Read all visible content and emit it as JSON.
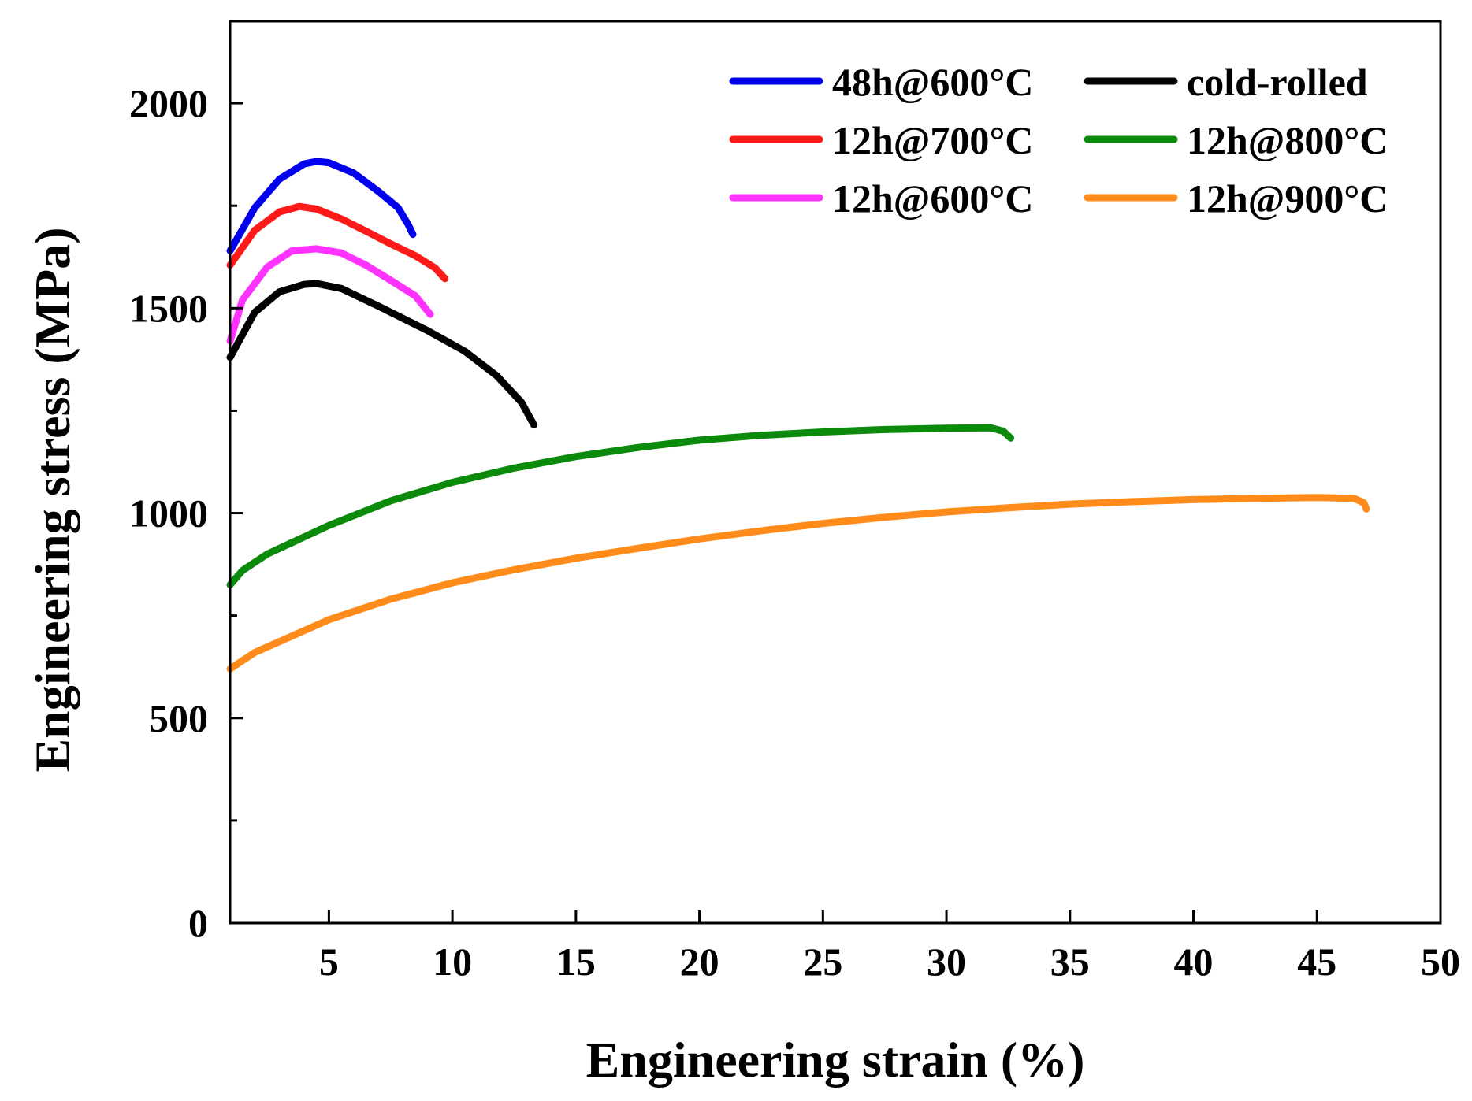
{
  "chart_data": {
    "type": "line",
    "title": "",
    "xlabel": "Engineering strain (%)",
    "ylabel": "Engineering stress (MPa)",
    "xlim": [
      1,
      50
    ],
    "ylim": [
      0,
      2200
    ],
    "x_ticks": [
      5,
      10,
      15,
      20,
      25,
      30,
      35,
      40,
      45,
      50
    ],
    "y_ticks": [
      0,
      500,
      1000,
      1500,
      2000
    ],
    "y_minor_ticks": [
      250,
      750,
      1250,
      1750
    ],
    "grid": false,
    "legend_position": "top-right",
    "series": [
      {
        "name": "48h@600°C",
        "color": "#0000ee",
        "points": [
          [
            1.0,
            1640
          ],
          [
            2.0,
            1745
          ],
          [
            3.0,
            1815
          ],
          [
            4.0,
            1852
          ],
          [
            4.5,
            1858
          ],
          [
            5.0,
            1855
          ],
          [
            6.0,
            1830
          ],
          [
            7.0,
            1785
          ],
          [
            7.8,
            1745
          ],
          [
            8.2,
            1705
          ],
          [
            8.4,
            1680
          ]
        ]
      },
      {
        "name": "12h@700°C",
        "color": "#ff1a1a",
        "points": [
          [
            1.0,
            1605
          ],
          [
            2.0,
            1690
          ],
          [
            3.0,
            1735
          ],
          [
            3.8,
            1748
          ],
          [
            4.5,
            1742
          ],
          [
            5.5,
            1718
          ],
          [
            6.5,
            1688
          ],
          [
            7.5,
            1657
          ],
          [
            8.5,
            1628
          ],
          [
            9.3,
            1598
          ],
          [
            9.7,
            1572
          ]
        ]
      },
      {
        "name": "12h@600°C",
        "color": "#ff33ff",
        "points": [
          [
            1.0,
            1420
          ],
          [
            1.5,
            1520
          ],
          [
            2.5,
            1600
          ],
          [
            3.5,
            1640
          ],
          [
            4.5,
            1645
          ],
          [
            5.5,
            1635
          ],
          [
            6.5,
            1605
          ],
          [
            7.5,
            1568
          ],
          [
            8.5,
            1530
          ],
          [
            9.1,
            1485
          ]
        ]
      },
      {
        "name": "cold-rolled",
        "color": "#000000",
        "points": [
          [
            1.0,
            1380
          ],
          [
            2.0,
            1490
          ],
          [
            3.0,
            1540
          ],
          [
            4.0,
            1558
          ],
          [
            4.5,
            1560
          ],
          [
            5.5,
            1548
          ],
          [
            7.0,
            1505
          ],
          [
            9.0,
            1445
          ],
          [
            10.5,
            1395
          ],
          [
            11.8,
            1335
          ],
          [
            12.8,
            1270
          ],
          [
            13.3,
            1215
          ]
        ]
      },
      {
        "name": "12h@800°C",
        "color": "#0c8a0c",
        "points": [
          [
            1.0,
            825
          ],
          [
            1.5,
            860
          ],
          [
            2.5,
            900
          ],
          [
            5.0,
            970
          ],
          [
            7.5,
            1030
          ],
          [
            10.0,
            1075
          ],
          [
            12.5,
            1110
          ],
          [
            15.0,
            1138
          ],
          [
            17.5,
            1160
          ],
          [
            20.0,
            1178
          ],
          [
            22.5,
            1190
          ],
          [
            25.0,
            1198
          ],
          [
            27.5,
            1204
          ],
          [
            30.0,
            1207
          ],
          [
            31.8,
            1208
          ],
          [
            32.3,
            1200
          ],
          [
            32.6,
            1183
          ]
        ]
      },
      {
        "name": "12h@900°C",
        "color": "#ff8c1a",
        "points": [
          [
            1.0,
            620
          ],
          [
            2.0,
            660
          ],
          [
            5.0,
            740
          ],
          [
            7.5,
            790
          ],
          [
            10.0,
            830
          ],
          [
            12.5,
            862
          ],
          [
            15.0,
            890
          ],
          [
            17.5,
            914
          ],
          [
            20.0,
            937
          ],
          [
            22.5,
            957
          ],
          [
            25.0,
            975
          ],
          [
            27.5,
            990
          ],
          [
            30.0,
            1003
          ],
          [
            32.5,
            1013
          ],
          [
            35.0,
            1022
          ],
          [
            37.5,
            1028
          ],
          [
            40.0,
            1033
          ],
          [
            42.5,
            1036
          ],
          [
            45.0,
            1038
          ],
          [
            46.5,
            1036
          ],
          [
            46.9,
            1025
          ],
          [
            47.0,
            1010
          ]
        ]
      }
    ]
  }
}
